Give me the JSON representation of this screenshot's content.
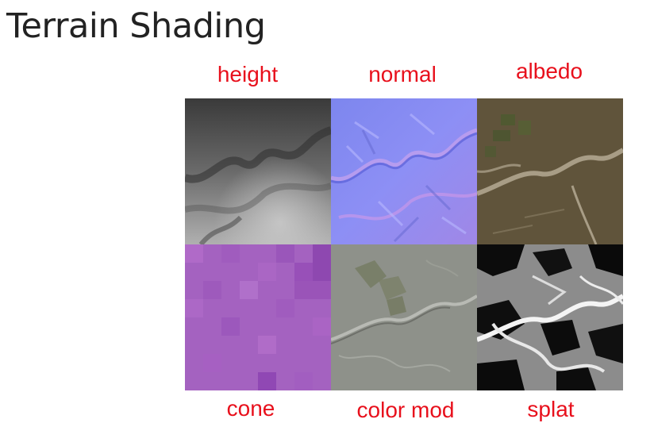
{
  "title": "Terrain Shading",
  "label_color": "#e8101c",
  "top_labels": [
    "height",
    "normal",
    "albedo"
  ],
  "bottom_labels": [
    "cone",
    "color mod",
    "splat"
  ],
  "tiles": [
    {
      "name": "height",
      "base": "#6e6e6e"
    },
    {
      "name": "normal",
      "base": "#8c8cf0"
    },
    {
      "name": "albedo",
      "base": "#6a5a40"
    },
    {
      "name": "cone",
      "base": "#a05ac0"
    },
    {
      "name": "color mod",
      "base": "#8e918a"
    },
    {
      "name": "splat",
      "base": "#0c0c0c"
    }
  ]
}
